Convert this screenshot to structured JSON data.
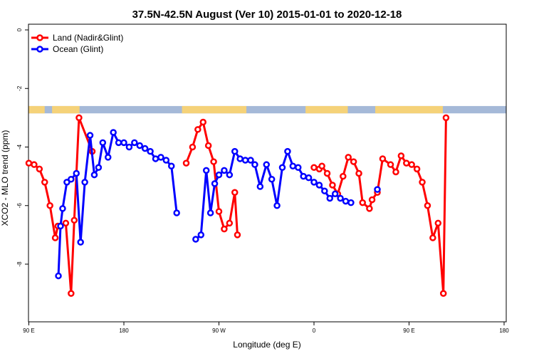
{
  "chart_data": {
    "type": "line",
    "title": "37.5N-42.5N August (Ver 10)   2015-01-01 to 2020-12-18",
    "xlabel": "Longitude (deg E)",
    "ylabel": "XCO2 - MLO trend (ppm)",
    "xlim": [
      90,
      450
    ],
    "ylim": [
      -10,
      0
    ],
    "xticks": [
      {
        "value": 90,
        "label": "90 E"
      },
      {
        "value": 180,
        "label": "180"
      },
      {
        "value": 270,
        "label": "90 W"
      },
      {
        "value": 360,
        "label": "0"
      },
      {
        "value": 450,
        "label": "90 E"
      },
      {
        "value": 540,
        "label": "180"
      }
    ],
    "yticks": [
      {
        "value": 0,
        "label": "0"
      },
      {
        "value": -2,
        "label": "-2"
      },
      {
        "value": -4,
        "label": "-4"
      },
      {
        "value": -6,
        "label": "-6"
      },
      {
        "value": -8,
        "label": "-8"
      }
    ],
    "legend_position": "top-left",
    "land_ocean_strip": {
      "y_range": [
        -2.6,
        -2.85
      ],
      "land_color": "#f5d279",
      "ocean_color": "#a5b9d8",
      "land_segments": [
        [
          90,
          105
        ],
        [
          112,
          138
        ],
        [
          235,
          296
        ],
        [
          352,
          392
        ],
        [
          418,
          482
        ]
      ]
    },
    "series": [
      {
        "name": "Land (Nadir&Glint)",
        "color": "#ff0000",
        "x": [
          90,
          95,
          100,
          105,
          110,
          115,
          117.5,
          125,
          130,
          133,
          137.5,
          150,
          155,
          160,
          165,
          170,
          175,
          180,
          185,
          190,
          195,
          200,
          205,
          210,
          215,
          220,
          225,
          230,
          235,
          239,
          245,
          250,
          255,
          260,
          265,
          270,
          275,
          280,
          285,
          287.5,
          290,
          300,
          305,
          310,
          315,
          320,
          325,
          330,
          335,
          340,
          345,
          350,
          355,
          360,
          365,
          367.5,
          372.5,
          377.5,
          382.5,
          387.5,
          392.5,
          397.5,
          402.5,
          406,
          412.5,
          415,
          420,
          425,
          432.5,
          437.5,
          442.5,
          447.5,
          452.5,
          457.5,
          462.5,
          467.5,
          472.5,
          477.5,
          482.5,
          485
        ],
        "y": [
          -4.55,
          -4.6,
          -4.75,
          -5.2,
          -6.0,
          -7.1,
          -6.7,
          -6.6,
          -9.0,
          -6.5,
          -3.0,
          -4.15,
          null,
          null,
          null,
          null,
          null,
          null,
          null,
          null,
          null,
          null,
          null,
          null,
          null,
          null,
          null,
          null,
          null,
          -4.55,
          -4.0,
          -3.4,
          -3.15,
          -3.95,
          -4.5,
          -6.2,
          -6.8,
          -6.6,
          -5.55,
          -7.0,
          null,
          null,
          null,
          null,
          null,
          null,
          null,
          null,
          null,
          null,
          null,
          null,
          null,
          -4.7,
          -4.75,
          -4.65,
          -4.9,
          -5.3,
          -5.6,
          -5.0,
          -4.35,
          -4.5,
          -4.9,
          -5.9,
          -6.1,
          -5.8,
          -5.55,
          -4.4,
          -4.6,
          -4.85,
          -4.3,
          -4.55,
          -4.6,
          -4.75,
          -5.2,
          -6.0,
          -7.1,
          -6.6,
          -9.0,
          -3.0
        ]
      },
      {
        "name": "Ocean (Glint)",
        "color": "#0000ff",
        "x": [
          118,
          120,
          122,
          126,
          130,
          135,
          139,
          143,
          148,
          152,
          156,
          160,
          165,
          170,
          175,
          180,
          185,
          190,
          195,
          200,
          205,
          210,
          215,
          220,
          225,
          230,
          235,
          248,
          253,
          258,
          262,
          266,
          270,
          275,
          280,
          285,
          290,
          295,
          300,
          304,
          309,
          315,
          320,
          325,
          330,
          335,
          340,
          345,
          350,
          355,
          360,
          365,
          370,
          375,
          380,
          385,
          390,
          395,
          400,
          405,
          410,
          415,
          420
        ],
        "y": [
          -8.4,
          -6.7,
          -6.1,
          -5.2,
          -5.1,
          -4.9,
          -7.25,
          -5.2,
          -3.6,
          -4.95,
          -4.7,
          -3.85,
          -4.35,
          -3.5,
          -3.85,
          -3.85,
          -4.0,
          -3.85,
          -3.95,
          -4.05,
          -4.15,
          -4.4,
          -4.35,
          -4.45,
          -4.65,
          -6.25,
          null,
          -7.15,
          -7.0,
          -4.8,
          -6.25,
          -5.25,
          -4.95,
          -4.8,
          -4.95,
          -4.15,
          -4.4,
          -4.45,
          -4.45,
          -4.6,
          -5.35,
          -4.6,
          -5.1,
          -6.0,
          -4.7,
          -4.15,
          -4.65,
          -4.7,
          -5.0,
          -5.05,
          -5.2,
          -5.3,
          -5.5,
          -5.75,
          -5.6,
          -5.75,
          -5.85,
          -5.9,
          null,
          null,
          null,
          null,
          -5.45
        ]
      }
    ]
  }
}
